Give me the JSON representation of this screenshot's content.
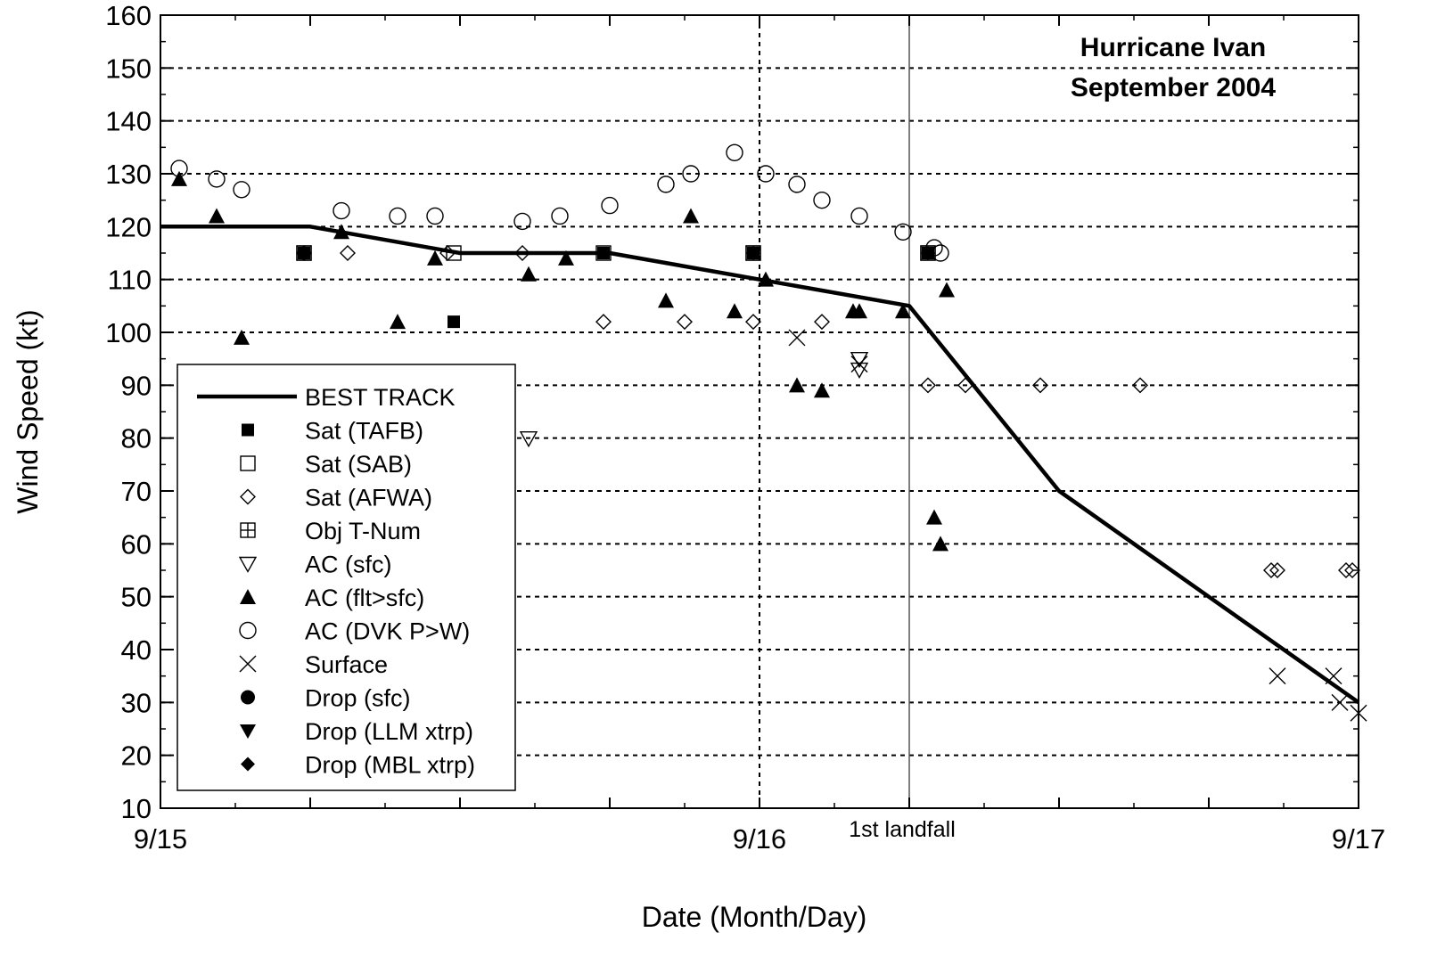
{
  "chart_data": {
    "type": "scatter",
    "title": [
      "Hurricane Ivan",
      "September 2004"
    ],
    "xlabel": "Date (Month/Day)",
    "ylabel": "Wind Speed (kt)",
    "xlim": [
      "9/15 00:00",
      "9/17 00:00"
    ],
    "ylim": [
      10,
      160
    ],
    "yticks": [
      10,
      20,
      30,
      40,
      50,
      60,
      70,
      80,
      90,
      100,
      110,
      120,
      130,
      140,
      150,
      160
    ],
    "xtick_labels": [
      {
        "label": "9/15",
        "x": "9/15 00:00"
      },
      {
        "label": "9/16",
        "x": "9/16 00:00"
      },
      {
        "label": "9/17",
        "x": "9/17 00:00"
      }
    ],
    "grid": true,
    "legend_placement": "lower-left",
    "annotations": [
      {
        "text": "1st landfall",
        "x": "9/16 06:00"
      }
    ],
    "series": [
      {
        "name": "BEST TRACK",
        "marker": "line",
        "points": [
          [
            "9/15 00:00",
            120
          ],
          [
            "9/15 06:00",
            120
          ],
          [
            "9/15 12:00",
            115
          ],
          [
            "9/15 18:00",
            115
          ],
          [
            "9/16 00:00",
            110
          ],
          [
            "9/16 06:00",
            105
          ],
          [
            "9/16 12:00",
            70
          ],
          [
            "9/16 18:00",
            50
          ],
          [
            "9/17 00:00",
            30
          ]
        ]
      },
      {
        "name": "Sat (TAFB)",
        "marker": "filled-square",
        "points": [
          [
            "9/15 05:45",
            115
          ],
          [
            "9/15 11:45",
            102
          ],
          [
            "9/15 17:45",
            115
          ],
          [
            "9/15 23:45",
            115
          ],
          [
            "9/16 06:45",
            115
          ]
        ]
      },
      {
        "name": "Sat (SAB)",
        "marker": "open-square",
        "points": [
          [
            "9/15 05:45",
            115
          ],
          [
            "9/15 11:45",
            115
          ],
          [
            "9/15 17:45",
            115
          ],
          [
            "9/15 23:45",
            115
          ],
          [
            "9/16 06:45",
            115
          ]
        ]
      },
      {
        "name": "Sat (AFWA)",
        "marker": "open-diamond",
        "points": [
          [
            "9/15 05:45",
            115
          ],
          [
            "9/15 07:30",
            115
          ],
          [
            "9/15 11:30",
            115
          ],
          [
            "9/15 14:30",
            115
          ],
          [
            "9/15 17:45",
            102
          ],
          [
            "9/15 21:00",
            102
          ],
          [
            "9/15 23:45",
            102
          ],
          [
            "9/16 02:30",
            102
          ],
          [
            "9/16 06:45",
            90
          ],
          [
            "9/16 08:15",
            90
          ],
          [
            "9/16 11:15",
            90
          ],
          [
            "9/16 15:15",
            90
          ],
          [
            "9/16 20:45",
            55
          ],
          [
            "9/16 20:30",
            55
          ],
          [
            "9/16 23:30",
            55
          ],
          [
            "9/16 23:45",
            55
          ]
        ]
      },
      {
        "name": "Obj T-Num",
        "marker": "square-plus",
        "points": [
          [
            "9/15 05:45",
            115
          ],
          [
            "9/15 23:45",
            115
          ],
          [
            "9/16 06:45",
            115
          ]
        ]
      },
      {
        "name": "AC (sfc)",
        "marker": "open-triangle-down",
        "points": [
          [
            "9/15 14:45",
            80
          ],
          [
            "9/16 04:00",
            95
          ],
          [
            "9/16 04:00",
            93
          ]
        ]
      },
      {
        "name": "AC (flt>sfc)",
        "marker": "filled-triangle-up",
        "points": [
          [
            "9/15 00:45",
            129
          ],
          [
            "9/15 02:15",
            122
          ],
          [
            "9/15 03:15",
            99
          ],
          [
            "9/15 07:15",
            119
          ],
          [
            "9/15 09:30",
            102
          ],
          [
            "9/15 11:00",
            114
          ],
          [
            "9/15 14:45",
            111
          ],
          [
            "9/15 16:15",
            114
          ],
          [
            "9/15 20:15",
            106
          ],
          [
            "9/15 21:15",
            122
          ],
          [
            "9/15 23:00",
            104
          ],
          [
            "9/16 00:15",
            110
          ],
          [
            "9/16 01:30",
            90
          ],
          [
            "9/16 02:30",
            89
          ],
          [
            "9/16 03:45",
            104
          ],
          [
            "9/16 04:00",
            104
          ],
          [
            "9/16 05:45",
            104
          ],
          [
            "9/16 07:00",
            65
          ],
          [
            "9/16 07:15",
            60
          ],
          [
            "9/16 07:30",
            108
          ]
        ]
      },
      {
        "name": "AC (DVK P>W)",
        "marker": "open-circle",
        "points": [
          [
            "9/15 00:45",
            131
          ],
          [
            "9/15 02:15",
            129
          ],
          [
            "9/15 03:15",
            127
          ],
          [
            "9/15 07:15",
            123
          ],
          [
            "9/15 09:30",
            122
          ],
          [
            "9/15 11:00",
            122
          ],
          [
            "9/15 14:30",
            121
          ],
          [
            "9/15 16:00",
            122
          ],
          [
            "9/15 18:00",
            124
          ],
          [
            "9/15 20:15",
            128
          ],
          [
            "9/15 21:15",
            130
          ],
          [
            "9/15 23:00",
            134
          ],
          [
            "9/16 00:15",
            130
          ],
          [
            "9/16 01:30",
            128
          ],
          [
            "9/16 02:30",
            125
          ],
          [
            "9/16 04:00",
            122
          ],
          [
            "9/16 05:45",
            119
          ],
          [
            "9/16 07:00",
            116
          ],
          [
            "9/16 07:15",
            115
          ]
        ]
      },
      {
        "name": "Surface",
        "marker": "x",
        "points": [
          [
            "9/16 01:30",
            99
          ],
          [
            "9/16 04:00",
            94
          ],
          [
            "9/16 20:45",
            35
          ],
          [
            "9/16 23:00",
            35
          ],
          [
            "9/16 23:15",
            30
          ],
          [
            "9/17 00:00",
            28
          ]
        ]
      },
      {
        "name": "Drop (sfc)",
        "marker": "filled-circle",
        "points": []
      },
      {
        "name": "Drop (LLM xtrp)",
        "marker": "filled-triangle-down",
        "points": []
      },
      {
        "name": "Drop (MBL xtrp)",
        "marker": "filled-diamond",
        "points": []
      }
    ]
  }
}
